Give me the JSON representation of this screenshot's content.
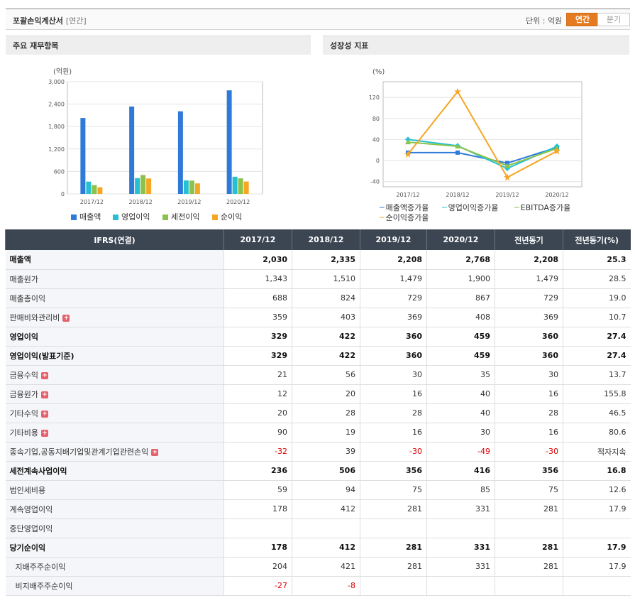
{
  "header": {
    "title": "포괄손익계산서",
    "subtitle": "[연간]",
    "unit_label": "단위 : 억원",
    "tab_annual": "연간",
    "tab_quarter": "분기"
  },
  "panels": {
    "left_title": "주요 재무항목",
    "right_title": "성장성 지표"
  },
  "colors": {
    "blue": "#2f7ad9",
    "cyan": "#27c0d2",
    "green": "#8bc34a",
    "orange": "#f5a623",
    "accent": "#e47b22",
    "header_bg": "#3c4653",
    "negative": "#e00000"
  },
  "chart_data": [
    {
      "type": "bar",
      "ylabel": "(억원)",
      "categories": [
        "2017/12",
        "2018/12",
        "2019/12",
        "2020/12"
      ],
      "yticks": [
        "0",
        "600",
        "1,200",
        "1,800",
        "2,400",
        "3,000"
      ],
      "ylim": [
        0,
        3000
      ],
      "series": [
        {
          "name": "매출액",
          "color": "#2f7ad9",
          "values": [
            2030,
            2335,
            2208,
            2768
          ]
        },
        {
          "name": "영업이익",
          "color": "#27c0d2",
          "values": [
            329,
            422,
            360,
            459
          ]
        },
        {
          "name": "세전이익",
          "color": "#8bc34a",
          "values": [
            236,
            506,
            356,
            416
          ]
        },
        {
          "name": "순이익",
          "color": "#f5a623",
          "values": [
            178,
            412,
            281,
            331
          ]
        }
      ]
    },
    {
      "type": "line",
      "ylabel": "(%)",
      "categories": [
        "2017/12",
        "2018/12",
        "2019/12",
        "2020/12"
      ],
      "yticks": [
        "-40",
        "0",
        "40",
        "80",
        "120"
      ],
      "ylim": [
        -50,
        150
      ],
      "series": [
        {
          "name": "매출액증가율",
          "color": "#2f7ad9",
          "marker": "square",
          "values": [
            15,
            15,
            -5,
            25
          ]
        },
        {
          "name": "영업이익증가율",
          "color": "#27c0d2",
          "marker": "diamond",
          "values": [
            40,
            28,
            -15,
            27
          ]
        },
        {
          "name": "EBITDA증가율",
          "color": "#8bc34a",
          "marker": "triangle",
          "values": [
            35,
            27,
            -10,
            23
          ]
        },
        {
          "name": "순이익증가율",
          "color": "#f5a623",
          "marker": "star",
          "values": [
            12,
            131,
            -32,
            18
          ]
        }
      ]
    }
  ],
  "table": {
    "headers": [
      "IFRS(연결)",
      "2017/12",
      "2018/12",
      "2019/12",
      "2020/12",
      "전년동기",
      "전년동기(%)"
    ],
    "rows": [
      {
        "label": "매출액",
        "bold": true,
        "expand": false,
        "indent": false,
        "cells": [
          "2,030",
          "2,335",
          "2,208",
          "2,768",
          "2,208",
          "25.3"
        ]
      },
      {
        "label": "매출원가",
        "bold": false,
        "expand": false,
        "indent": false,
        "cells": [
          "1,343",
          "1,510",
          "1,479",
          "1,900",
          "1,479",
          "28.5"
        ]
      },
      {
        "label": "매출총이익",
        "bold": false,
        "expand": false,
        "indent": false,
        "cells": [
          "688",
          "824",
          "729",
          "867",
          "729",
          "19.0"
        ]
      },
      {
        "label": "판매비와관리비",
        "bold": false,
        "expand": true,
        "indent": false,
        "cells": [
          "359",
          "403",
          "369",
          "408",
          "369",
          "10.7"
        ]
      },
      {
        "label": "영업이익",
        "bold": true,
        "expand": false,
        "indent": false,
        "cells": [
          "329",
          "422",
          "360",
          "459",
          "360",
          "27.4"
        ]
      },
      {
        "label": "영업이익(발표기준)",
        "bold": true,
        "expand": false,
        "indent": false,
        "cells": [
          "329",
          "422",
          "360",
          "459",
          "360",
          "27.4"
        ]
      },
      {
        "label": "금융수익",
        "bold": false,
        "expand": true,
        "indent": false,
        "cells": [
          "21",
          "56",
          "30",
          "35",
          "30",
          "13.7"
        ]
      },
      {
        "label": "금융원가",
        "bold": false,
        "expand": true,
        "indent": false,
        "cells": [
          "12",
          "20",
          "16",
          "40",
          "16",
          "155.8"
        ]
      },
      {
        "label": "기타수익",
        "bold": false,
        "expand": true,
        "indent": false,
        "cells": [
          "20",
          "28",
          "28",
          "40",
          "28",
          "46.5"
        ]
      },
      {
        "label": "기타비용",
        "bold": false,
        "expand": true,
        "indent": false,
        "cells": [
          "90",
          "19",
          "16",
          "30",
          "16",
          "80.6"
        ]
      },
      {
        "label": "종속기업,공동지배기업및관계기업관련손익",
        "bold": false,
        "expand": true,
        "indent": false,
        "cells": [
          "-32",
          "39",
          "-30",
          "-49",
          "-30",
          "적자지속"
        ]
      },
      {
        "label": "세전계속사업이익",
        "bold": true,
        "expand": false,
        "indent": false,
        "cells": [
          "236",
          "506",
          "356",
          "416",
          "356",
          "16.8"
        ]
      },
      {
        "label": "법인세비용",
        "bold": false,
        "expand": false,
        "indent": false,
        "cells": [
          "59",
          "94",
          "75",
          "85",
          "75",
          "12.6"
        ]
      },
      {
        "label": "계속영업이익",
        "bold": false,
        "expand": false,
        "indent": false,
        "cells": [
          "178",
          "412",
          "281",
          "331",
          "281",
          "17.9"
        ]
      },
      {
        "label": "중단영업이익",
        "bold": false,
        "expand": false,
        "indent": false,
        "cells": [
          "",
          "",
          "",
          "",
          "",
          ""
        ]
      },
      {
        "label": "당기순이익",
        "bold": true,
        "expand": false,
        "indent": false,
        "cells": [
          "178",
          "412",
          "281",
          "331",
          "281",
          "17.9"
        ]
      },
      {
        "label": "지배주주순이익",
        "bold": false,
        "expand": false,
        "indent": true,
        "cells": [
          "204",
          "421",
          "281",
          "331",
          "281",
          "17.9"
        ]
      },
      {
        "label": "비지배주주순이익",
        "bold": false,
        "expand": false,
        "indent": true,
        "cells": [
          "-27",
          "-8",
          "",
          "",
          "",
          ""
        ]
      }
    ]
  }
}
